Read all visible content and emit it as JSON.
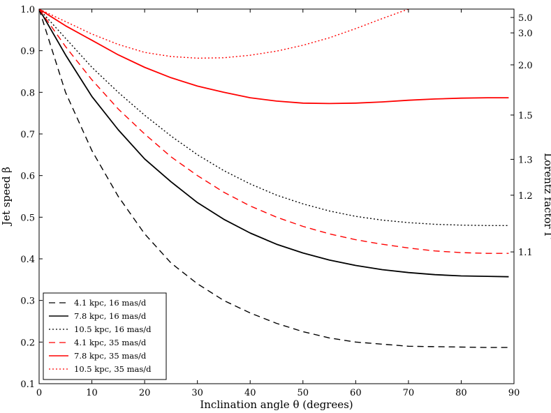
{
  "chart_data": {
    "type": "line",
    "title": "",
    "xlabel": "Inclination angle θ (degrees)",
    "ylabel": "Jet speed β",
    "y2label": "Lorentz factor Γ",
    "xlim": [
      0,
      90
    ],
    "ylim": [
      0.1,
      1.0
    ],
    "x_ticks": [
      "0",
      "10",
      "20",
      "30",
      "40",
      "50",
      "60",
      "70",
      "80",
      "90"
    ],
    "y_ticks": [
      "0.1",
      "0.2",
      "0.3",
      "0.4",
      "0.5",
      "0.6",
      "0.7",
      "0.8",
      "0.9",
      "1.0"
    ],
    "y2_ticks": [
      {
        "label": "5.0",
        "beta": 0.9798
      },
      {
        "label": "3.0",
        "beta": 0.9428
      },
      {
        "label": "2.0",
        "beta": 0.866
      },
      {
        "label": "1.5",
        "beta": 0.7454
      },
      {
        "label": "1.3",
        "beta": 0.639
      },
      {
        "label": "1.2",
        "beta": 0.5528
      },
      {
        "label": "1.1",
        "beta": 0.4166
      }
    ],
    "legend_position": "bottom-left",
    "series": [
      {
        "name": "4.1 kpc, 16 mas/d",
        "color": "#000000",
        "style": "dashed",
        "x": [
          0,
          5,
          10,
          15,
          20,
          25,
          30,
          35,
          40,
          45,
          50,
          55,
          60,
          65,
          70,
          75,
          80,
          85,
          89
        ],
        "y": [
          1.0,
          0.8,
          0.66,
          0.55,
          0.46,
          0.39,
          0.34,
          0.3,
          0.27,
          0.245,
          0.225,
          0.21,
          0.2,
          0.195,
          0.19,
          0.189,
          0.188,
          0.187,
          0.187
        ]
      },
      {
        "name": "7.8 kpc, 16 mas/d",
        "color": "#000000",
        "style": "solid",
        "x": [
          0,
          5,
          10,
          15,
          20,
          25,
          30,
          35,
          40,
          45,
          50,
          55,
          60,
          65,
          70,
          75,
          80,
          85,
          89
        ],
        "y": [
          1.0,
          0.89,
          0.79,
          0.71,
          0.64,
          0.585,
          0.535,
          0.495,
          0.462,
          0.435,
          0.414,
          0.397,
          0.384,
          0.374,
          0.367,
          0.362,
          0.359,
          0.358,
          0.357
        ]
      },
      {
        "name": "10.5 kpc, 16 mas/d",
        "color": "#000000",
        "style": "dotted",
        "x": [
          0,
          5,
          10,
          15,
          20,
          25,
          30,
          35,
          40,
          45,
          50,
          55,
          60,
          65,
          70,
          75,
          80,
          85,
          89
        ],
        "y": [
          1.0,
          0.93,
          0.86,
          0.8,
          0.745,
          0.695,
          0.65,
          0.612,
          0.58,
          0.553,
          0.532,
          0.515,
          0.502,
          0.493,
          0.487,
          0.483,
          0.481,
          0.48,
          0.48
        ]
      },
      {
        "name": "4.1 kpc, 35 mas/d",
        "color": "#ff0000",
        "style": "dashed",
        "x": [
          0,
          5,
          10,
          15,
          20,
          25,
          30,
          35,
          40,
          45,
          50,
          55,
          60,
          65,
          70,
          75,
          80,
          85,
          89
        ],
        "y": [
          1.0,
          0.91,
          0.83,
          0.76,
          0.7,
          0.645,
          0.6,
          0.56,
          0.527,
          0.5,
          0.478,
          0.46,
          0.446,
          0.435,
          0.426,
          0.419,
          0.415,
          0.413,
          0.413
        ]
      },
      {
        "name": "7.8 kpc, 35 mas/d",
        "color": "#ff0000",
        "style": "solid",
        "x": [
          0,
          5,
          10,
          15,
          20,
          25,
          30,
          35,
          40,
          45,
          50,
          55,
          60,
          65,
          70,
          75,
          80,
          85,
          89
        ],
        "y": [
          1.0,
          0.96,
          0.925,
          0.89,
          0.86,
          0.835,
          0.815,
          0.8,
          0.787,
          0.779,
          0.774,
          0.773,
          0.774,
          0.777,
          0.781,
          0.784,
          0.786,
          0.787,
          0.787
        ]
      },
      {
        "name": "10.5 kpc, 35 mas/d",
        "color": "#ff0000",
        "style": "dotted",
        "x": [
          0,
          5,
          10,
          15,
          20,
          25,
          30,
          35,
          40,
          45,
          50,
          55,
          60,
          65,
          70
        ],
        "y": [
          1.0,
          0.97,
          0.94,
          0.915,
          0.896,
          0.886,
          0.882,
          0.883,
          0.889,
          0.899,
          0.913,
          0.931,
          0.953,
          0.977,
          1.0
        ]
      }
    ]
  }
}
